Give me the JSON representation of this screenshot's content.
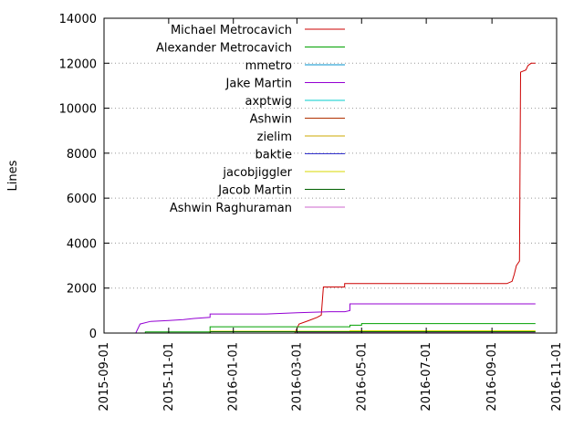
{
  "chart_data": {
    "type": "line",
    "title": "",
    "xlabel": "",
    "ylabel": "Lines",
    "xlim": [
      "2015-09-01",
      "2016-11-01"
    ],
    "ylim": [
      0,
      14000
    ],
    "yticks": [
      0,
      2000,
      4000,
      6000,
      8000,
      10000,
      12000,
      14000
    ],
    "xticks": [
      "2015-09-01",
      "2015-11-01",
      "2016-01-01",
      "2016-03-01",
      "2016-05-01",
      "2016-07-01",
      "2016-09-01",
      "2016-11-01"
    ],
    "grid": "horizontal dotted",
    "legend_position": "top-left",
    "series": [
      {
        "name": "Michael Metrocavich",
        "color": "#cc0000",
        "points": [
          [
            "2015-09-01",
            0
          ],
          [
            "2016-02-28",
            0
          ],
          [
            "2016-03-03",
            400
          ],
          [
            "2016-03-12",
            550
          ],
          [
            "2016-03-20",
            700
          ],
          [
            "2016-03-24",
            800
          ],
          [
            "2016-03-26",
            2050
          ],
          [
            "2016-04-15",
            2050
          ],
          [
            "2016-04-15",
            2200
          ],
          [
            "2016-09-15",
            2200
          ],
          [
            "2016-09-20",
            2300
          ],
          [
            "2016-09-22",
            2600
          ],
          [
            "2016-09-24",
            3000
          ],
          [
            "2016-09-27",
            3200
          ],
          [
            "2016-09-28",
            11600
          ],
          [
            "2016-10-03",
            11700
          ],
          [
            "2016-10-05",
            11900
          ],
          [
            "2016-10-08",
            12000
          ],
          [
            "2016-10-12",
            12000
          ]
        ]
      },
      {
        "name": "Alexander Metrocavich",
        "color": "#00a000",
        "points": [
          [
            "2015-09-20",
            0
          ],
          [
            "2015-10-10",
            0
          ],
          [
            "2015-10-10",
            50
          ],
          [
            "2015-12-10",
            50
          ],
          [
            "2015-12-10",
            280
          ],
          [
            "2016-04-20",
            280
          ],
          [
            "2016-04-20",
            350
          ],
          [
            "2016-05-01",
            350
          ],
          [
            "2016-05-01",
            420
          ],
          [
            "2016-10-12",
            420
          ]
        ]
      },
      {
        "name": "mmetro",
        "color": "#0090cc",
        "points": [
          [
            "2015-09-20",
            0
          ],
          [
            "2016-10-12",
            0
          ]
        ]
      },
      {
        "name": "Jake Martin",
        "color": "#9400d3",
        "points": [
          [
            "2015-09-20",
            0
          ],
          [
            "2015-10-01",
            0
          ],
          [
            "2015-10-05",
            400
          ],
          [
            "2015-10-15",
            520
          ],
          [
            "2015-11-01",
            560
          ],
          [
            "2015-11-15",
            600
          ],
          [
            "2015-11-25",
            650
          ],
          [
            "2015-12-10",
            700
          ],
          [
            "2015-12-10",
            850
          ],
          [
            "2016-02-01",
            850
          ],
          [
            "2016-03-01",
            900
          ],
          [
            "2016-04-01",
            950
          ],
          [
            "2016-04-15",
            950
          ],
          [
            "2016-04-20",
            1000
          ],
          [
            "2016-04-20",
            1300
          ],
          [
            "2016-10-12",
            1300
          ]
        ]
      },
      {
        "name": "axptwig",
        "color": "#00cccc",
        "points": [
          [
            "2015-09-20",
            0
          ],
          [
            "2016-10-12",
            0
          ]
        ]
      },
      {
        "name": "Ashwin",
        "color": "#b03000",
        "points": [
          [
            "2015-09-20",
            0
          ],
          [
            "2016-10-12",
            0
          ]
        ]
      },
      {
        "name": "zielim",
        "color": "#ccaa00",
        "points": [
          [
            "2015-09-20",
            0
          ],
          [
            "2016-10-12",
            0
          ]
        ]
      },
      {
        "name": "baktie",
        "color": "#3030cc",
        "points": [
          [
            "2015-09-20",
            0
          ],
          [
            "2016-10-12",
            0
          ]
        ]
      },
      {
        "name": "jacobjiggler",
        "color": "#d8d800",
        "points": [
          [
            "2015-09-20",
            0
          ],
          [
            "2015-12-10",
            0
          ],
          [
            "2015-12-10",
            80
          ],
          [
            "2016-04-20",
            80
          ],
          [
            "2016-04-20",
            100
          ],
          [
            "2016-10-12",
            100
          ]
        ]
      },
      {
        "name": "Jacob Martin",
        "color": "#006000",
        "points": [
          [
            "2015-09-20",
            0
          ],
          [
            "2015-12-10",
            0
          ],
          [
            "2015-12-10",
            60
          ],
          [
            "2016-10-12",
            60
          ]
        ]
      },
      {
        "name": "Ashwin Raghuraman",
        "color": "#cc66cc",
        "points": [
          [
            "2015-09-20",
            0
          ],
          [
            "2016-03-01",
            0
          ],
          [
            "2016-03-01",
            20
          ],
          [
            "2016-10-12",
            20
          ]
        ]
      }
    ]
  }
}
